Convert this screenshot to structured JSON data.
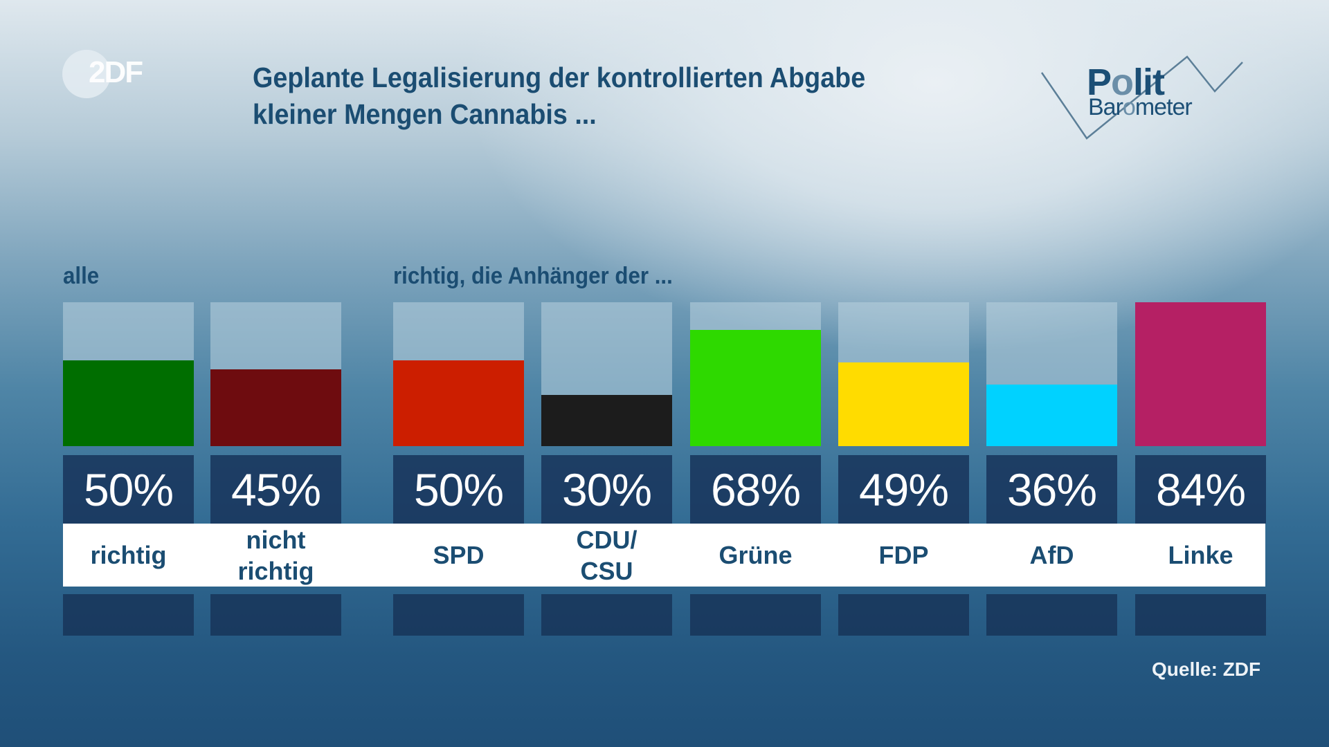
{
  "logo": {
    "zdf": "2DF"
  },
  "title": {
    "line1": "Geplante Legalisierung der kontrollierten Abgabe",
    "line2": "kleiner Mengen Cannabis ..."
  },
  "brand": {
    "polit_a": "P",
    "polit_o": "o",
    "polit_b": "lit",
    "baro_a": "Bar",
    "baro_o": "o",
    "baro_b": "meter"
  },
  "group_labels": {
    "all": "alle",
    "parties": "richtig, die Anhänger der ..."
  },
  "source": "Quelle: ZDF",
  "chart_data": {
    "type": "bar",
    "title": "Geplante Legalisierung der kontrollierten Abgabe kleiner Mengen Cannabis ...",
    "ylim": [
      0,
      100
    ],
    "groups": [
      {
        "label": "alle",
        "categories": [
          "richtig",
          "nicht richtig"
        ]
      },
      {
        "label": "richtig, die Anhänger der ...",
        "categories": [
          "SPD",
          "CDU/CSU",
          "Grüne",
          "FDP",
          "AfD",
          "Linke"
        ]
      }
    ],
    "bars": [
      {
        "label": "richtig",
        "label_lines": [
          "richtig"
        ],
        "value": 50,
        "display": "50%",
        "color": "#006e00"
      },
      {
        "label": "nicht richtig",
        "label_lines": [
          "nicht",
          "richtig"
        ],
        "value": 45,
        "display": "45%",
        "color": "#6e0c0f"
      },
      {
        "label": "SPD",
        "label_lines": [
          "SPD"
        ],
        "value": 50,
        "display": "50%",
        "color": "#cc1e00"
      },
      {
        "label": "CDU/CSU",
        "label_lines": [
          "CDU/",
          "CSU"
        ],
        "value": 30,
        "display": "30%",
        "color": "#1c1c1c"
      },
      {
        "label": "Grüne",
        "label_lines": [
          "Grüne"
        ],
        "value": 68,
        "display": "68%",
        "color": "#2ed900"
      },
      {
        "label": "FDP",
        "label_lines": [
          "FDP"
        ],
        "value": 49,
        "display": "49%",
        "color": "#ffdc00"
      },
      {
        "label": "AfD",
        "label_lines": [
          "AfD"
        ],
        "value": 36,
        "display": "36%",
        "color": "#00d2ff"
      },
      {
        "label": "Linke",
        "label_lines": [
          "Linke"
        ],
        "value": 84,
        "display": "84%",
        "color": "#b52064"
      }
    ]
  }
}
